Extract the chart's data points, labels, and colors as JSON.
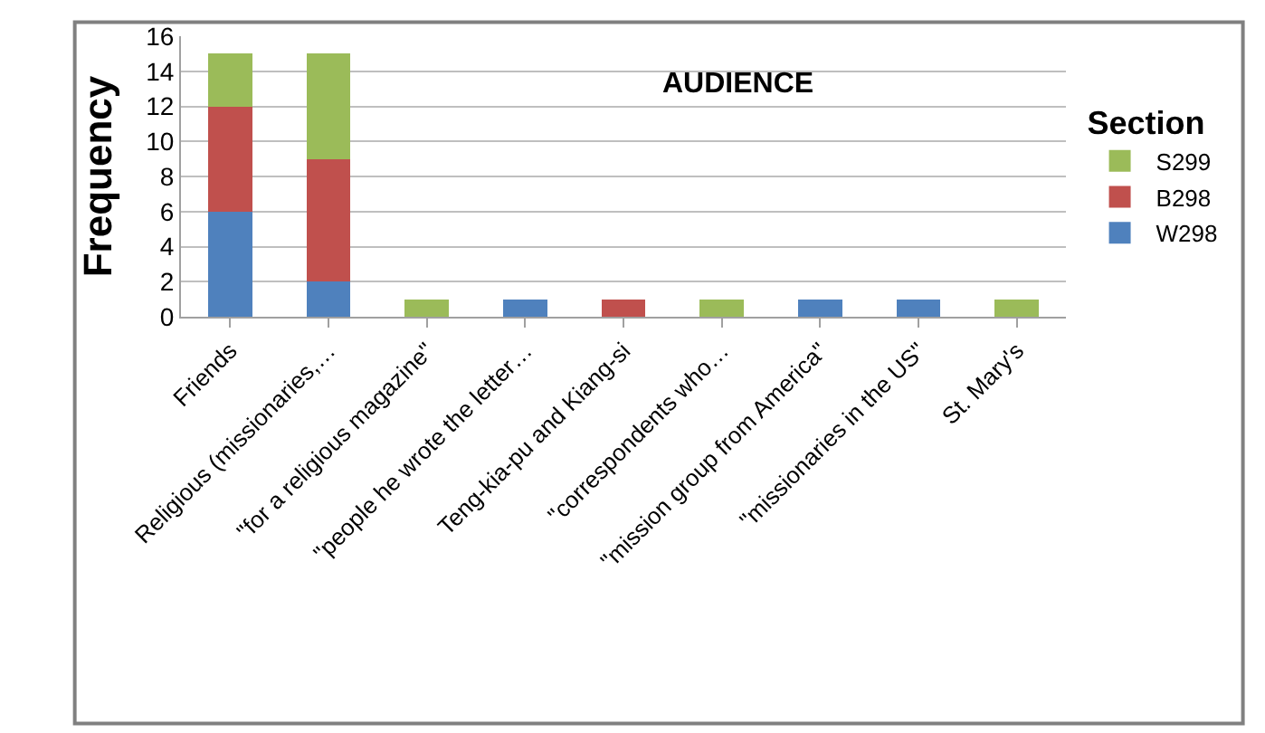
{
  "chart_data": {
    "type": "bar",
    "title": "AUDIENCE",
    "ylabel": "Frequency",
    "legend_title": "Section",
    "stacked": true,
    "legend": "right",
    "grid": "y",
    "categories": [
      "Friends",
      "Religious (missionaries,…",
      "\"for a religious magazine\"",
      "\"people he wrote the letter…",
      "Teng-kia-pu and Kiang-si",
      "\"correspondents who…",
      "\"mission group from America\"",
      "\"missionaries in the US\"",
      "St. Mary's"
    ],
    "series": [
      {
        "name": "W298",
        "color": "#4f81bd",
        "values": [
          6,
          2,
          0,
          1,
          0,
          0,
          1,
          1,
          0
        ]
      },
      {
        "name": "B298",
        "color": "#c0504d",
        "values": [
          6,
          7,
          0,
          0,
          1,
          0,
          0,
          0,
          0
        ]
      },
      {
        "name": "S299",
        "color": "#9bbb59",
        "values": [
          3,
          6,
          1,
          0,
          0,
          1,
          0,
          0,
          1
        ]
      }
    ],
    "ylim": [
      0,
      16
    ],
    "yticks": [
      0,
      2,
      4,
      6,
      8,
      10,
      12,
      14,
      16
    ]
  }
}
